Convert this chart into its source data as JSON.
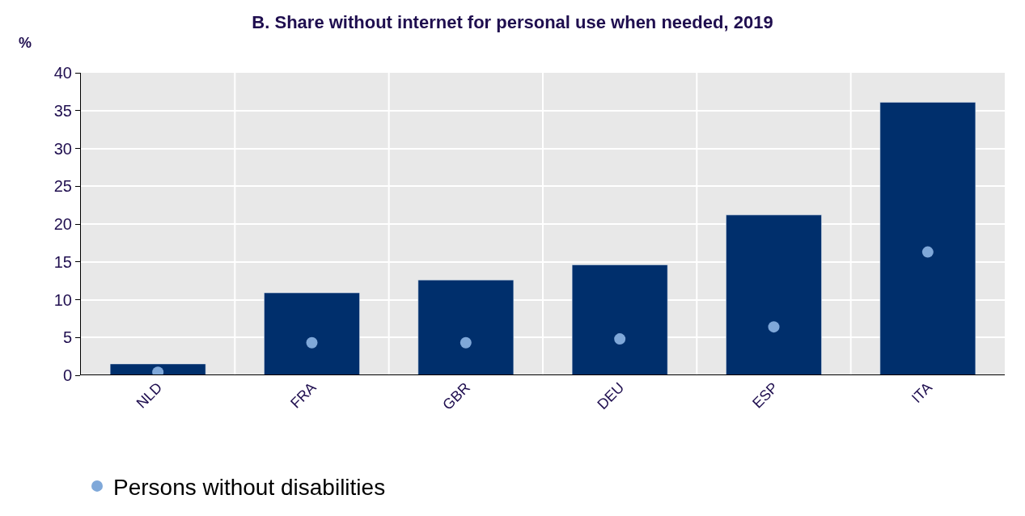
{
  "chart_data": {
    "type": "bar",
    "title": "B. Share without internet for personal use when needed, 2019",
    "ylabel": "%",
    "categories": [
      "NLD",
      "FRA",
      "GBR",
      "DEU",
      "ESP",
      "ITA"
    ],
    "series": [
      {
        "color": "#002f6c",
        "values": [
          1.5,
          10.9,
          12.6,
          14.6,
          21.2,
          36.1
        ]
      },
      {
        "type": "scatter",
        "name": "Persons without disabilities",
        "color": "#7fa8d9",
        "marker": "circle",
        "values": [
          0.4,
          4.3,
          4.3,
          4.8,
          6.4,
          16.3
        ]
      }
    ],
    "ylim": [
      0,
      40
    ],
    "yticks": [
      0,
      5,
      10,
      15,
      20,
      25,
      30,
      35,
      40
    ],
    "grid": true,
    "legend": "bottom left"
  }
}
